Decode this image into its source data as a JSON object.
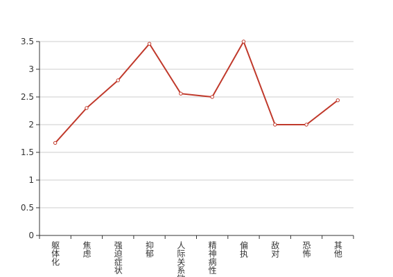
{
  "chart_data": {
    "type": "line",
    "categories": [
      "躯体化",
      "焦虑",
      "强迫症状",
      "抑郁",
      "人际关系敏感",
      "精神病性",
      "偏执",
      "敌对",
      "恐怖",
      "其他"
    ],
    "series": [
      {
        "color": "#c0392b",
        "values": [
          1.67,
          2.3,
          2.8,
          3.46,
          2.56,
          2.5,
          3.5,
          2.0,
          2.0,
          2.44
        ]
      }
    ],
    "ylim": [
      0,
      3.5
    ],
    "yticks": [
      0,
      0.5,
      1,
      1.5,
      2,
      2.5,
      3,
      3.5
    ],
    "grid": true
  }
}
